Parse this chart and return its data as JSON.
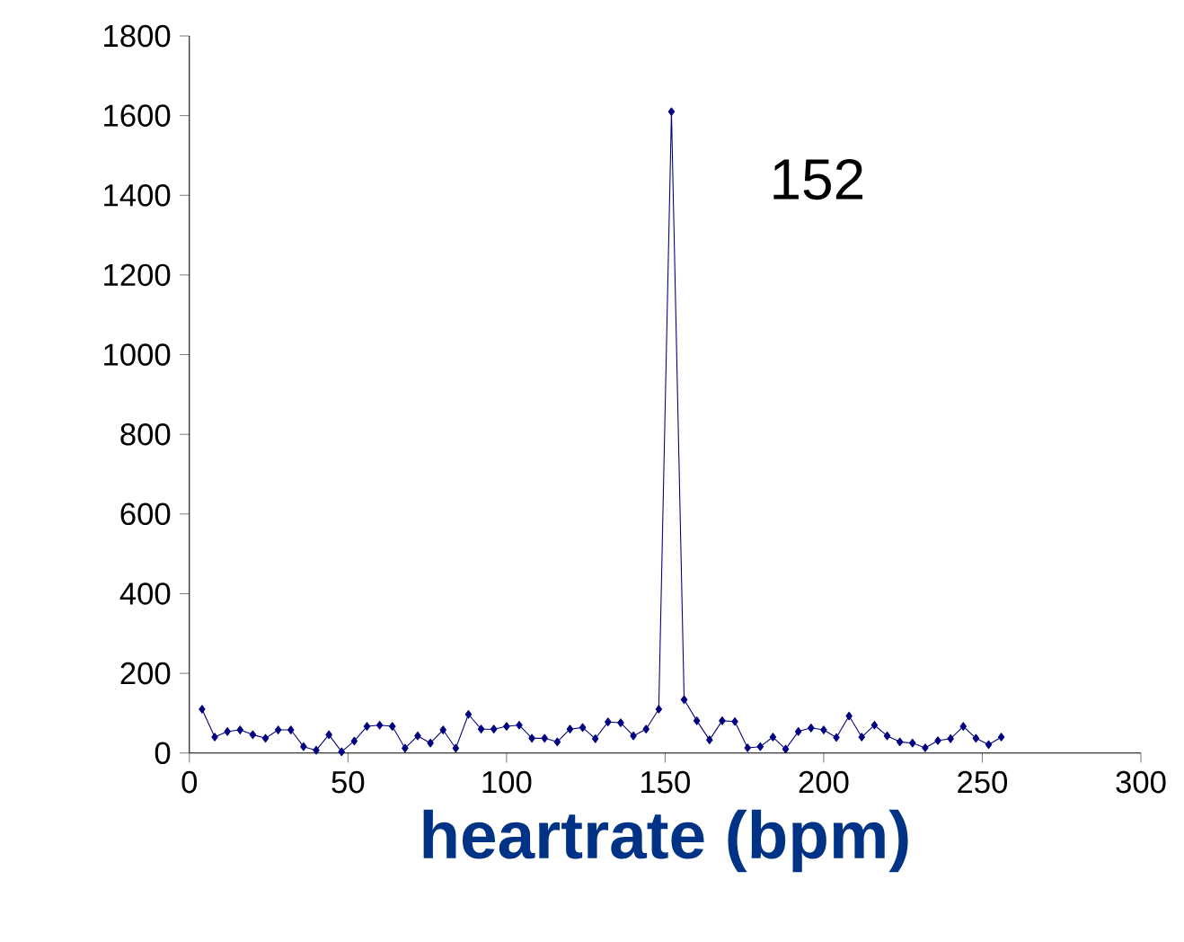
{
  "chart_data": {
    "type": "line",
    "xlabel": "heartrate (bpm)",
    "x": [
      4,
      8,
      12,
      16,
      20,
      24,
      28,
      32,
      36,
      40,
      44,
      48,
      52,
      56,
      60,
      64,
      68,
      72,
      76,
      80,
      84,
      88,
      92,
      96,
      100,
      104,
      108,
      112,
      116,
      120,
      124,
      128,
      132,
      136,
      140,
      144,
      148,
      152,
      156,
      160,
      164,
      168,
      172,
      176,
      180,
      184,
      188,
      192,
      196,
      200,
      204,
      208,
      212,
      216,
      220,
      224,
      228,
      232,
      236,
      240,
      244,
      248,
      252,
      256
    ],
    "series": [
      {
        "color": "#000080",
        "values": [
          110,
          40,
          54,
          58,
          46,
          37,
          58,
          58,
          16,
          7,
          46,
          3,
          30,
          67,
          70,
          67,
          12,
          43,
          25,
          58,
          12,
          97,
          60,
          60,
          67,
          70,
          37,
          37,
          28,
          60,
          64,
          36,
          78,
          76,
          43,
          60,
          110,
          1610,
          134,
          81,
          33,
          81,
          79,
          13,
          16,
          40,
          10,
          54,
          63,
          58,
          39,
          93,
          40,
          70,
          43,
          28,
          25,
          13,
          31,
          36,
          67,
          37,
          21,
          40
        ]
      }
    ],
    "xlim": [
      0,
      300
    ],
    "xticks": [
      0,
      50,
      100,
      150,
      200,
      250,
      300
    ],
    "ylim": [
      0,
      1800
    ],
    "yticks": [
      0,
      200,
      400,
      600,
      800,
      1000,
      1200,
      1400,
      1600,
      1800
    ],
    "marker": "diamond",
    "line_style": "solid",
    "grid": false,
    "annotations": [
      "152"
    ]
  }
}
